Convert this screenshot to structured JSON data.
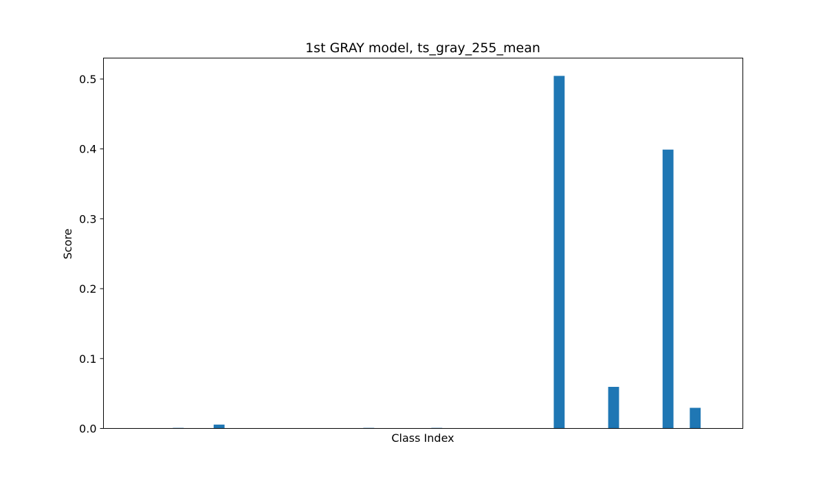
{
  "chart_data": {
    "type": "bar",
    "title": "1st GRAY model, ts_gray_255_mean",
    "xlabel": "Class Index",
    "ylabel": "Score",
    "ylim": [
      0,
      0.53
    ],
    "yticks": [
      0.0,
      0.1,
      0.2,
      0.3,
      0.4,
      0.5
    ],
    "ytick_labels": [
      "0.0",
      "0.1",
      "0.2",
      "0.3",
      "0.4",
      "0.5"
    ],
    "xlim": [
      -1.5,
      45.5
    ],
    "x_ticks_shown": false,
    "grid": false,
    "bar_color": "#1f77b4",
    "x": [
      0,
      1,
      2,
      3,
      4,
      5,
      6,
      7,
      8,
      9,
      10,
      11,
      12,
      13,
      14,
      15,
      16,
      17,
      18,
      19,
      20,
      21,
      22,
      23,
      24,
      25,
      26,
      27,
      28,
      29,
      30,
      31,
      32,
      33,
      34,
      35,
      36,
      37,
      38,
      39,
      40,
      41,
      42,
      43
    ],
    "values": [
      0,
      0,
      0,
      0,
      0.0008,
      0,
      0,
      0.0055,
      0,
      0,
      0,
      0,
      0,
      0,
      0,
      0,
      0,
      0,
      0.0008,
      0,
      0,
      0,
      0,
      0.0008,
      0,
      0,
      0,
      0,
      0,
      0,
      0,
      0,
      0.5045,
      0,
      0,
      0,
      0.0595,
      0,
      0,
      0,
      0.399,
      0,
      0.0295,
      0
    ]
  }
}
